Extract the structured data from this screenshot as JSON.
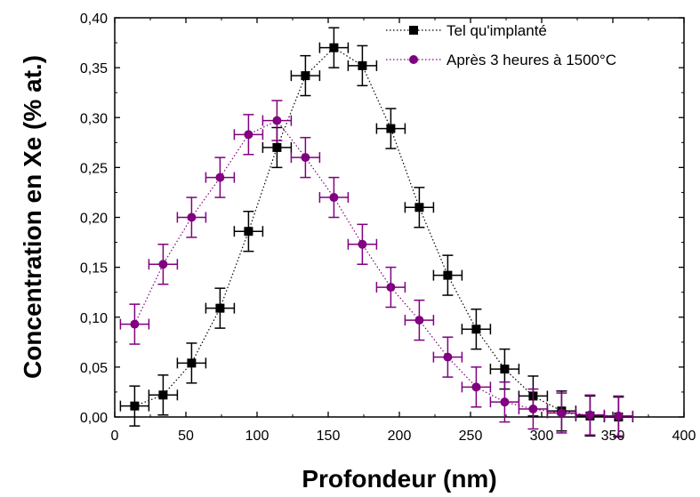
{
  "chart_data": {
    "type": "scatter",
    "xlabel": "Profondeur (nm)",
    "ylabel": "Concentration en Xe (% at.)",
    "xlim": [
      0,
      400
    ],
    "ylim": [
      0,
      0.4
    ],
    "x_ticks": [
      0,
      50,
      100,
      150,
      200,
      250,
      300,
      350,
      400
    ],
    "x_tick_labels": [
      "0",
      "50",
      "100",
      "150",
      "200",
      "250",
      "300",
      "350",
      "400"
    ],
    "y_ticks": [
      0,
      0.05,
      0.1,
      0.15,
      0.2,
      0.25,
      0.3,
      0.35,
      0.4
    ],
    "y_tick_labels": [
      "0,00",
      "0,05",
      "0,10",
      "0,15",
      "0,20",
      "0,25",
      "0,30",
      "0,35",
      "0,40"
    ],
    "grid": false,
    "legend_position": "top-right",
    "x_error": 10,
    "y_error": 0.02,
    "series": [
      {
        "name": "Tel qu'implanté",
        "marker": "square",
        "color": "#000000",
        "line": "dotted",
        "points": [
          [
            14,
            0.011
          ],
          [
            34,
            0.022
          ],
          [
            54,
            0.054
          ],
          [
            74,
            0.109
          ],
          [
            94,
            0.186
          ],
          [
            114,
            0.27
          ],
          [
            134,
            0.342
          ],
          [
            154,
            0.37
          ],
          [
            174,
            0.352
          ],
          [
            194,
            0.289
          ],
          [
            214,
            0.21
          ],
          [
            234,
            0.142
          ],
          [
            254,
            0.088
          ],
          [
            274,
            0.048
          ],
          [
            294,
            0.021
          ],
          [
            314,
            0.006
          ],
          [
            334,
            0.001
          ],
          [
            354,
            0.0
          ]
        ]
      },
      {
        "name": "Après 3 heures à 1500°C",
        "marker": "circle",
        "color": "#800080",
        "line": "dotted",
        "points": [
          [
            14,
            0.093
          ],
          [
            34,
            0.153
          ],
          [
            54,
            0.2
          ],
          [
            74,
            0.24
          ],
          [
            94,
            0.283
          ],
          [
            114,
            0.297
          ],
          [
            134,
            0.26
          ],
          [
            154,
            0.22
          ],
          [
            174,
            0.173
          ],
          [
            194,
            0.13
          ],
          [
            214,
            0.097
          ],
          [
            234,
            0.06
          ],
          [
            254,
            0.03
          ],
          [
            274,
            0.015
          ],
          [
            294,
            0.008
          ],
          [
            314,
            0.004
          ],
          [
            334,
            0.002
          ],
          [
            354,
            0.001
          ]
        ]
      }
    ]
  }
}
